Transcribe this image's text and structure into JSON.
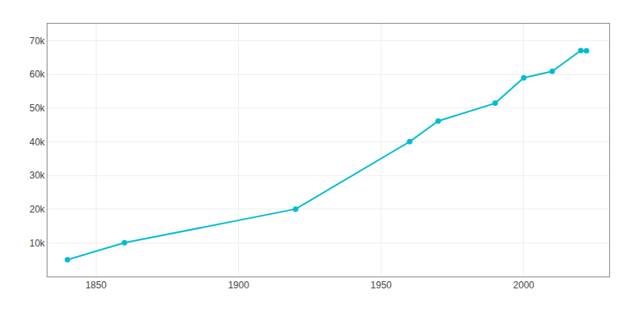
{
  "chart_data": {
    "type": "line",
    "x": [
      1840,
      1860,
      1920,
      1960,
      1970,
      1990,
      2000,
      2010,
      2020,
      2022
    ],
    "values": [
      5000,
      10000,
      20000,
      40000,
      46120,
      51418,
      58969,
      60879,
      67045,
      67000
    ],
    "color": "#00bcd4",
    "marker": "circle",
    "xlim": [
      1833,
      2030
    ],
    "xticks": [
      1850,
      1900,
      1950,
      2000
    ],
    "ylim": [
      0,
      75000
    ],
    "yticks": [
      {
        "value": 10000,
        "label": "10k"
      },
      {
        "value": 20000,
        "label": "20k"
      },
      {
        "value": 30000,
        "label": "30k"
      },
      {
        "value": 40000,
        "label": "40k"
      },
      {
        "value": 50000,
        "label": "50k"
      },
      {
        "value": 60000,
        "label": "60k"
      },
      {
        "value": 70000,
        "label": "70k"
      }
    ],
    "grid": true
  }
}
